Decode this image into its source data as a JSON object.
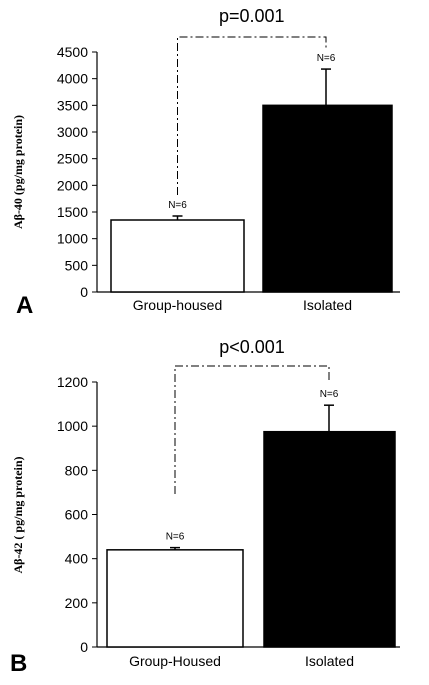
{
  "chart_data": [
    {
      "type": "bar",
      "panel_label": "A",
      "categories": [
        "Group-housed",
        "Isolated"
      ],
      "values": [
        1350,
        3500
      ],
      "errors": [
        75,
        680
      ],
      "bar_colors": [
        "#ffffff",
        "#000000"
      ],
      "n_labels": [
        "N=6",
        "N=6"
      ],
      "significance": "p=0.001",
      "ylabel": "Aβ-40 (pg/mg protein)",
      "ylim": [
        0,
        4500
      ],
      "yticks": [
        0,
        500,
        1000,
        1500,
        2000,
        2500,
        3000,
        3500,
        4000,
        4500
      ],
      "grid": false
    },
    {
      "type": "bar",
      "panel_label": "B",
      "categories": [
        "Group-Housed",
        "Isolated"
      ],
      "values": [
        440,
        975
      ],
      "errors": [
        10,
        120
      ],
      "bar_colors": [
        "#ffffff",
        "#000000"
      ],
      "n_labels": [
        "N=6",
        "N=6"
      ],
      "significance": "p<0.001",
      "ylabel": "Aβ-42 ( pg/mg protein)",
      "ylim": [
        0,
        1200
      ],
      "yticks": [
        0,
        200,
        400,
        600,
        800,
        1000,
        1200
      ],
      "grid": false
    }
  ]
}
